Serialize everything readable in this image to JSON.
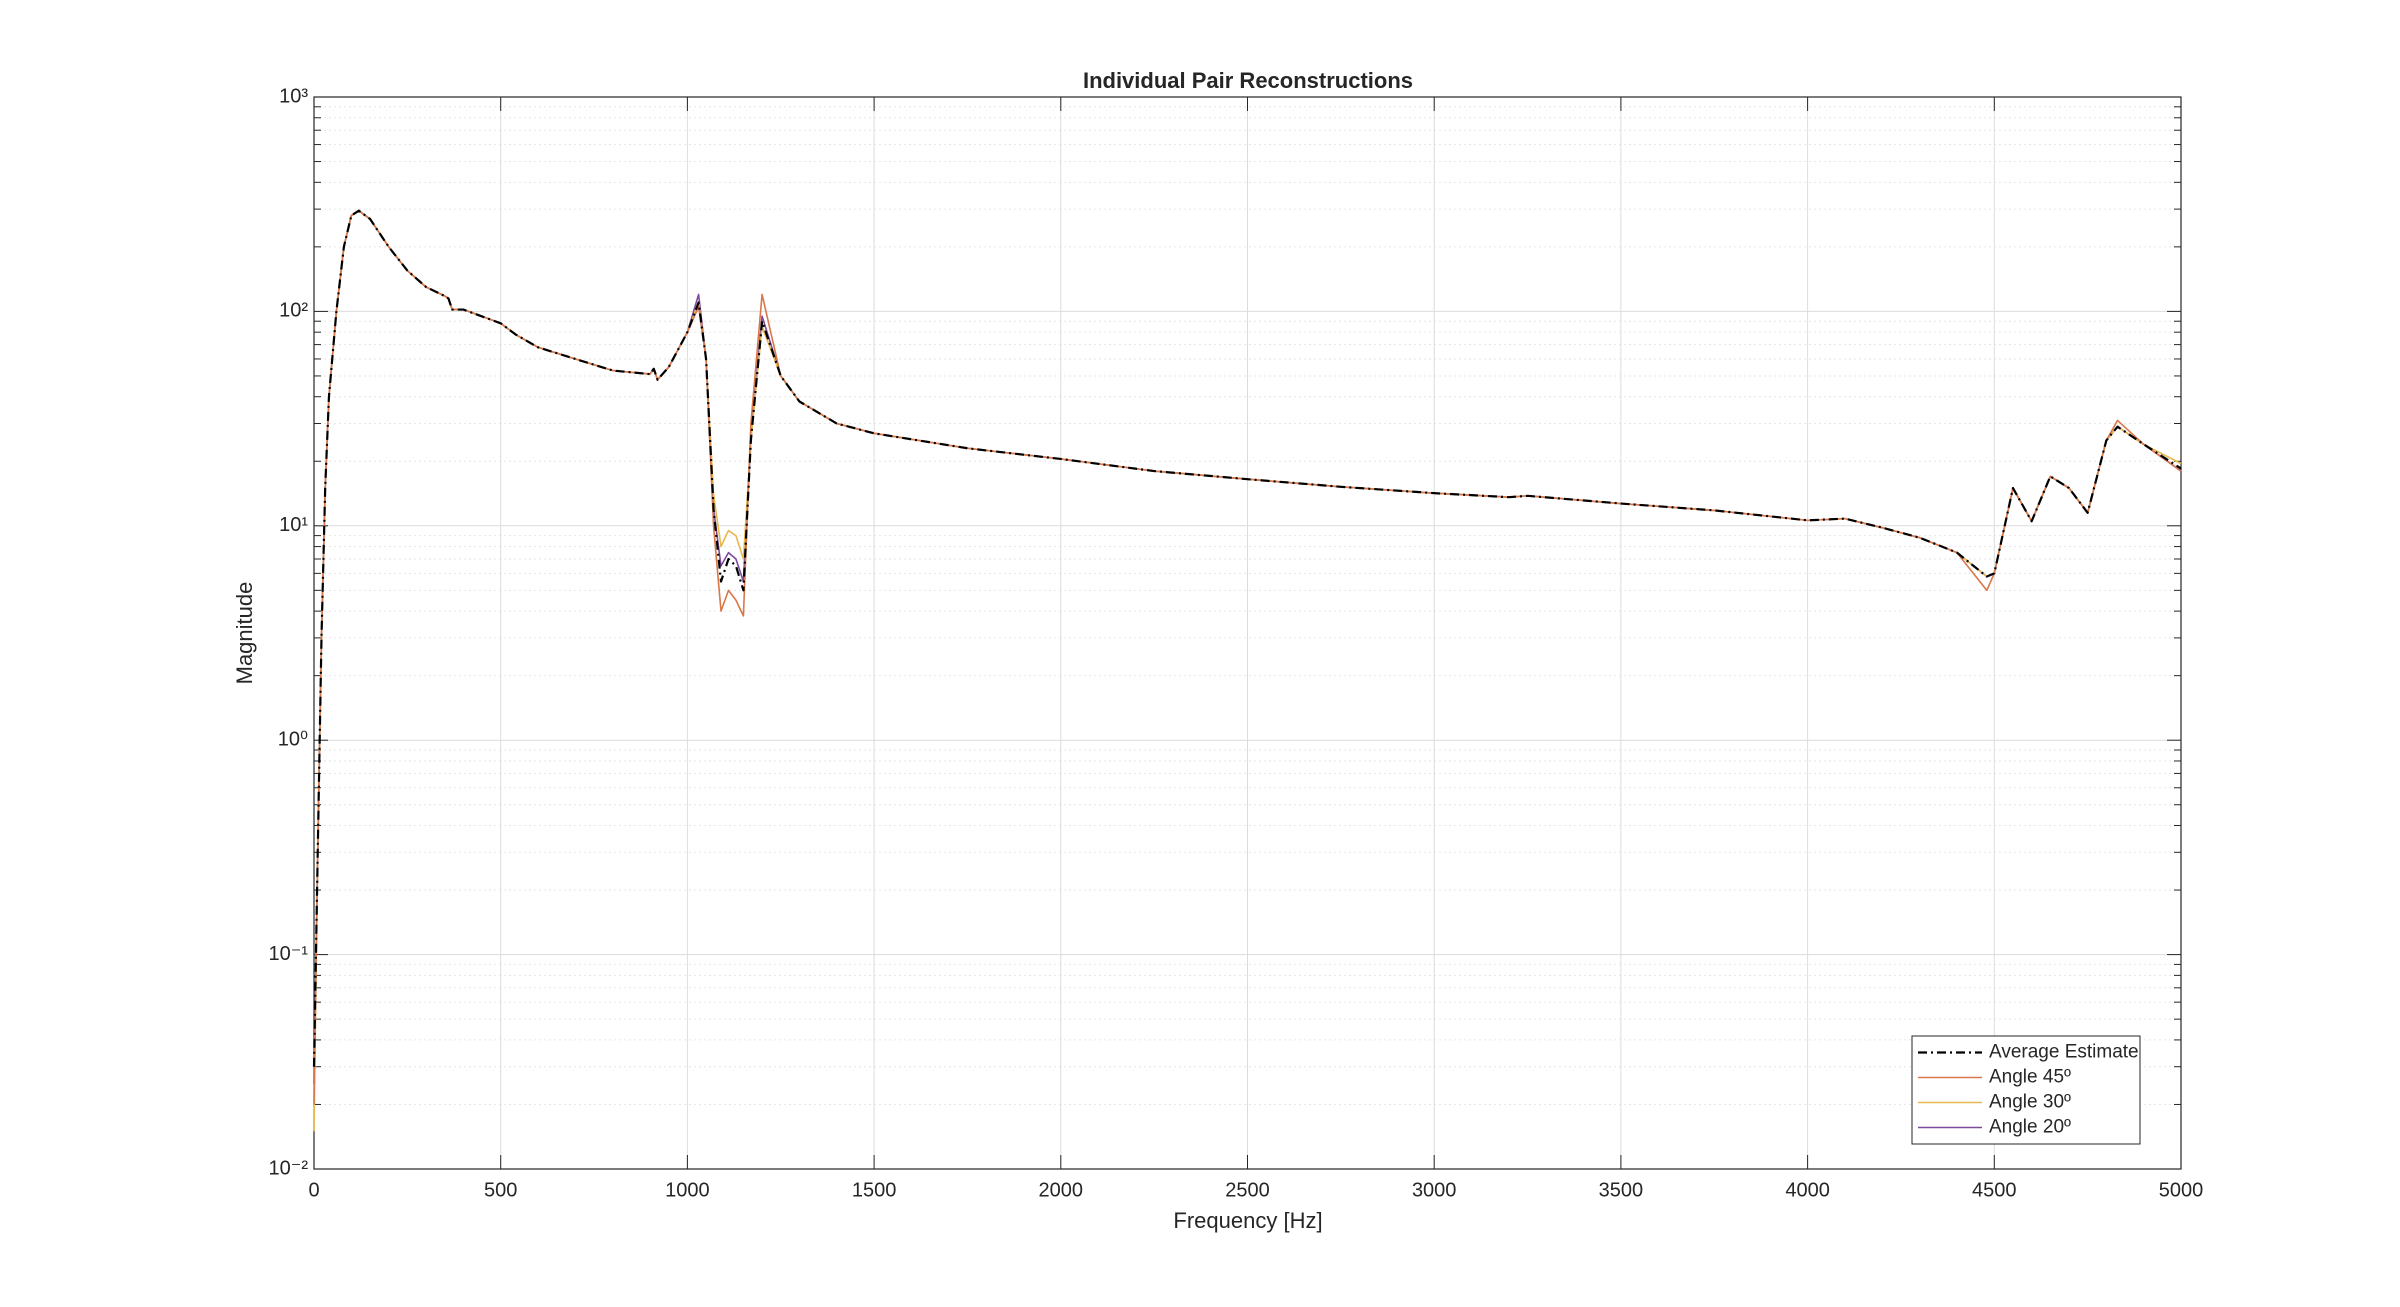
{
  "chart_data": {
    "type": "line",
    "title": "Individual Pair Reconstructions",
    "x_label": "Frequency [Hz]",
    "y_label": "Magnitude",
    "log_y": true,
    "grid": true,
    "minor_grid": true,
    "legend_position": "lower right",
    "xlim": [
      0,
      5000
    ],
    "xticks": [
      0,
      500,
      1000,
      1500,
      2000,
      2500,
      3000,
      3500,
      4000,
      4500,
      5000
    ],
    "ylim": [
      0.01,
      1000
    ],
    "yticks": [
      {
        "value": 0.01,
        "label": "10⁻²"
      },
      {
        "value": 0.1,
        "label": "10⁻¹"
      },
      {
        "value": 1,
        "label": "10⁰"
      },
      {
        "value": 10,
        "label": "10¹"
      },
      {
        "value": 100,
        "label": "10²"
      },
      {
        "value": 1000,
        "label": "10³"
      }
    ],
    "x": [
      0,
      10,
      20,
      30,
      40,
      60,
      80,
      100,
      120,
      150,
      200,
      250,
      300,
      350,
      360,
      370,
      400,
      500,
      540,
      600,
      700,
      800,
      900,
      910,
      920,
      950,
      1000,
      1030,
      1050,
      1070,
      1090,
      1110,
      1130,
      1150,
      1170,
      1200,
      1250,
      1300,
      1400,
      1500,
      1750,
      2000,
      2250,
      2500,
      2750,
      3000,
      3200,
      3250,
      3500,
      3750,
      4000,
      4100,
      4200,
      4300,
      4400,
      4480,
      4500,
      4550,
      4600,
      4650,
      4700,
      4750,
      4800,
      4830,
      4900,
      5000
    ],
    "series": [
      {
        "name": "Average Estimate",
        "color": "#000000",
        "dash": "dashdot",
        "values": [
          0.03,
          0.3,
          3,
          15,
          40,
          100,
          200,
          280,
          295,
          270,
          200,
          155,
          130,
          118,
          115,
          102,
          102,
          88,
          78,
          68,
          60,
          53,
          51,
          54,
          48,
          55,
          80,
          110,
          60,
          12,
          5.5,
          7,
          6.5,
          5,
          25,
          90,
          50,
          38,
          30,
          27,
          23,
          20.5,
          18,
          16.5,
          15.2,
          14.2,
          13.6,
          13.8,
          12.7,
          11.8,
          10.6,
          10.8,
          9.8,
          8.8,
          7.5,
          5.8,
          6,
          15,
          10.5,
          17,
          15,
          11.5,
          25,
          29,
          24,
          18.5
        ]
      },
      {
        "name": "Angle 45º",
        "color": "#d9774a",
        "values": [
          0.02,
          0.3,
          3,
          15,
          40,
          100,
          200,
          280,
          295,
          270,
          200,
          155,
          130,
          118,
          115,
          102,
          102,
          88,
          78,
          68,
          60,
          53,
          51,
          54,
          48,
          55,
          80,
          105,
          60,
          10,
          4,
          5,
          4.5,
          3.8,
          30,
          120,
          50,
          38,
          30,
          27,
          23,
          20.5,
          18,
          16.5,
          15.2,
          14.2,
          13.6,
          13.8,
          12.7,
          11.8,
          10.6,
          10.8,
          9.8,
          8.8,
          7.5,
          5,
          6,
          15,
          10.5,
          17,
          15,
          11.5,
          25,
          31,
          24,
          18
        ]
      },
      {
        "name": "Angle 30º",
        "color": "#e6b84d",
        "values": [
          0.015,
          0.3,
          3,
          15,
          40,
          100,
          200,
          280,
          295,
          270,
          200,
          155,
          130,
          118,
          115,
          102,
          102,
          88,
          78,
          68,
          60,
          53,
          51,
          54,
          48,
          55,
          80,
          110,
          60,
          14,
          8,
          9.5,
          9,
          7,
          25,
          85,
          50,
          38,
          30,
          27,
          23,
          20.5,
          18,
          16.5,
          15.2,
          14.2,
          13.6,
          13.8,
          12.7,
          11.8,
          10.6,
          10.8,
          9.8,
          8.8,
          7.5,
          5.8,
          6,
          15,
          10.5,
          17,
          15,
          11.5,
          25,
          29,
          24,
          19.5
        ]
      },
      {
        "name": "Angle 20º",
        "color": "#7e4a9e",
        "values": [
          0.025,
          0.3,
          3,
          15,
          40,
          100,
          200,
          280,
          295,
          270,
          200,
          155,
          130,
          118,
          115,
          102,
          102,
          88,
          78,
          68,
          60,
          53,
          51,
          54,
          48,
          55,
          80,
          120,
          60,
          12,
          6.5,
          7.5,
          7,
          5.5,
          25,
          95,
          50,
          38,
          30,
          27,
          23,
          20.5,
          18,
          16.5,
          15.2,
          14.2,
          13.6,
          13.8,
          12.7,
          11.8,
          10.6,
          10.8,
          9.8,
          8.8,
          7.5,
          5.8,
          6,
          15,
          10.5,
          17,
          15,
          11.5,
          25,
          29,
          24,
          18
        ]
      }
    ]
  }
}
